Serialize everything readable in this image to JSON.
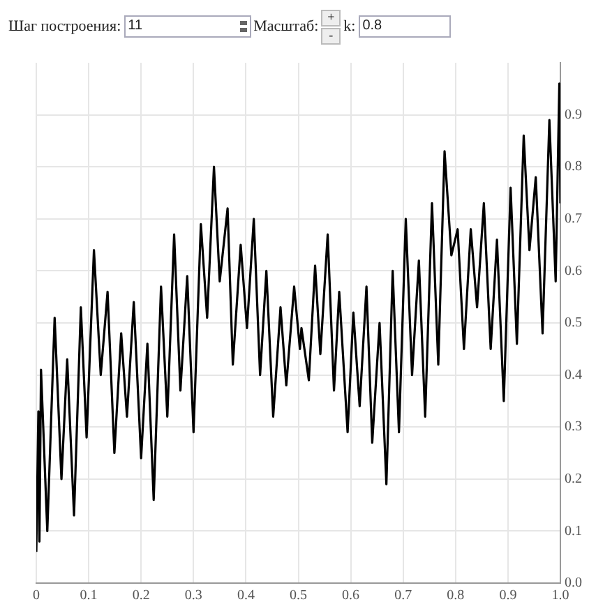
{
  "chart_data": {
    "type": "line",
    "annotations": [
      "Шаг построения:",
      "11",
      "Масштаб:",
      "+",
      "-",
      "k:",
      "0.8"
    ],
    "x": [
      0,
      0.004,
      0.006,
      0.009,
      0.021,
      0.035,
      0.048,
      0.059,
      0.072,
      0.085,
      0.096,
      0.11,
      0.123,
      0.136,
      0.149,
      0.162,
      0.173,
      0.186,
      0.2,
      0.212,
      0.224,
      0.238,
      0.25,
      0.263,
      0.275,
      0.288,
      0.3,
      0.314,
      0.326,
      0.339,
      0.35,
      0.365,
      0.375,
      0.39,
      0.402,
      0.415,
      0.427,
      0.439,
      0.452,
      0.466,
      0.477,
      0.492,
      0.503,
      0.506,
      0.52,
      0.532,
      0.542,
      0.556,
      0.568,
      0.578,
      0.594,
      0.605,
      0.617,
      0.63,
      0.641,
      0.655,
      0.668,
      0.68,
      0.692,
      0.705,
      0.717,
      0.73,
      0.742,
      0.755,
      0.767,
      0.779,
      0.792,
      0.804,
      0.816,
      0.829,
      0.841,
      0.854,
      0.867,
      0.879,
      0.892,
      0.905,
      0.917,
      0.93,
      0.941,
      0.953,
      0.966,
      0.979,
      0.991,
      0.998,
      1
    ],
    "series": [
      {
        "color": "#000000",
        "values": [
          0.06,
          0.33,
          0.08,
          0.41,
          0.1,
          0.51,
          0.2,
          0.43,
          0.13,
          0.53,
          0.28,
          0.64,
          0.4,
          0.56,
          0.25,
          0.48,
          0.32,
          0.54,
          0.24,
          0.46,
          0.16,
          0.57,
          0.32,
          0.67,
          0.37,
          0.59,
          0.29,
          0.69,
          0.51,
          0.8,
          0.58,
          0.72,
          0.42,
          0.65,
          0.49,
          0.7,
          0.4,
          0.6,
          0.32,
          0.53,
          0.38,
          0.57,
          0.45,
          0.49,
          0.39,
          0.61,
          0.44,
          0.67,
          0.37,
          0.56,
          0.29,
          0.52,
          0.34,
          0.57,
          0.27,
          0.5,
          0.19,
          0.6,
          0.29,
          0.7,
          0.4,
          0.62,
          0.32,
          0.73,
          0.42,
          0.83,
          0.63,
          0.68,
          0.45,
          0.68,
          0.53,
          0.73,
          0.45,
          0.66,
          0.35,
          0.76,
          0.46,
          0.86,
          0.64,
          0.78,
          0.48,
          0.89,
          0.58,
          0.96,
          0.73
        ]
      }
    ],
    "xlim": [
      0,
      1
    ],
    "xticks": [
      {
        "value": 0,
        "label": "0"
      },
      0.1,
      0.2,
      0.3,
      0.4,
      0.5,
      0.6,
      0.7,
      0.8,
      0.9,
      {
        "value": 1,
        "label": "1.0"
      }
    ],
    "ylim": [
      0,
      1
    ],
    "yticks": [
      {
        "value": 0,
        "label": "0.0"
      },
      0.1,
      0.2,
      0.3,
      0.4,
      0.5,
      0.6,
      0.7,
      0.8,
      0.9
    ],
    "grid": true,
    "legend": false,
    "marker": "none",
    "line_style": "solid"
  }
}
